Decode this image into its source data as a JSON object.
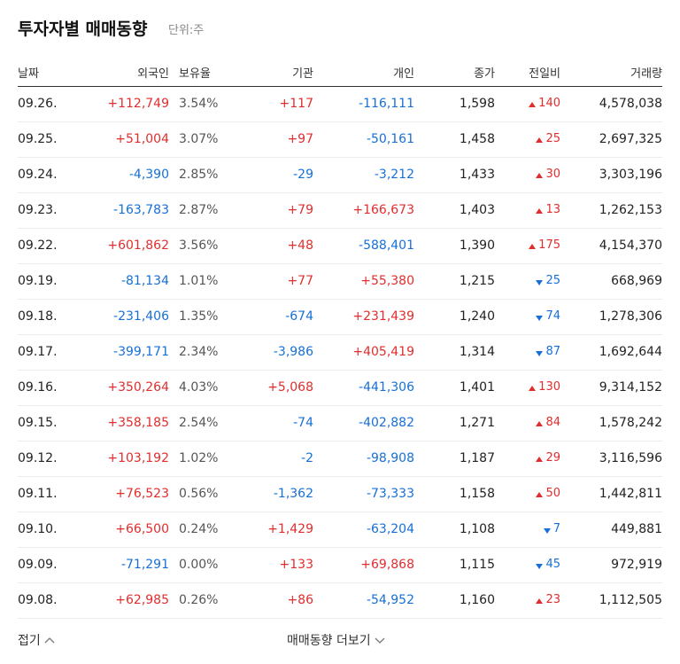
{
  "header": {
    "title": "투자자별 매매동향",
    "unit": "단위:주"
  },
  "table": {
    "columns": [
      "날짜",
      "외국인",
      "보유율",
      "기관",
      "개인",
      "종가",
      "전일비",
      "거래량"
    ],
    "rows": [
      [
        "09.26.",
        "+112,749",
        "3.54%",
        "+117",
        "-116,111",
        "1,598",
        "140",
        "4,578,038"
      ],
      [
        "09.25.",
        "+51,004",
        "3.07%",
        "+97",
        "-50,161",
        "1,458",
        "25",
        "2,697,325"
      ],
      [
        "09.24.",
        "-4,390",
        "2.85%",
        "-29",
        "-3,212",
        "1,433",
        "30",
        "3,303,196"
      ],
      [
        "09.23.",
        "-163,783",
        "2.87%",
        "+79",
        "+166,673",
        "1,403",
        "13",
        "1,262,153"
      ],
      [
        "09.22.",
        "+601,862",
        "3.56%",
        "+48",
        "-588,401",
        "1,390",
        "175",
        "4,154,370"
      ],
      [
        "09.19.",
        "-81,134",
        "1.01%",
        "+77",
        "+55,380",
        "1,215",
        "25",
        "668,969"
      ],
      [
        "09.18.",
        "-231,406",
        "1.35%",
        "-674",
        "+231,439",
        "1,240",
        "74",
        "1,278,306"
      ],
      [
        "09.17.",
        "-399,171",
        "2.34%",
        "-3,986",
        "+405,419",
        "1,314",
        "87",
        "1,692,644"
      ],
      [
        "09.16.",
        "+350,264",
        "4.03%",
        "+5,068",
        "-441,306",
        "1,401",
        "130",
        "9,314,152"
      ],
      [
        "09.15.",
        "+358,185",
        "2.54%",
        "-74",
        "-402,882",
        "1,271",
        "84",
        "1,578,242"
      ],
      [
        "09.12.",
        "+103,192",
        "1.02%",
        "-2",
        "-98,908",
        "1,187",
        "29",
        "3,116,596"
      ],
      [
        "09.11.",
        "+76,523",
        "0.56%",
        "-1,362",
        "-73,333",
        "1,158",
        "50",
        "1,442,811"
      ],
      [
        "09.10.",
        "+66,500",
        "0.24%",
        "+1,429",
        "-63,204",
        "1,108",
        "7",
        "449,881"
      ],
      [
        "09.09.",
        "-71,291",
        "0.00%",
        "+133",
        "+69,868",
        "1,115",
        "45",
        "972,919"
      ],
      [
        "09.08.",
        "+62,985",
        "0.26%",
        "+86",
        "-54,952",
        "1,160",
        "23",
        "1,112,505"
      ]
    ],
    "change_directions": [
      "up",
      "up",
      "up",
      "up",
      "up",
      "down",
      "down",
      "down",
      "up",
      "up",
      "up",
      "up",
      "down",
      "down",
      "up"
    ]
  },
  "footer": {
    "collapse": "접기",
    "more": "매매동향 더보기"
  }
}
